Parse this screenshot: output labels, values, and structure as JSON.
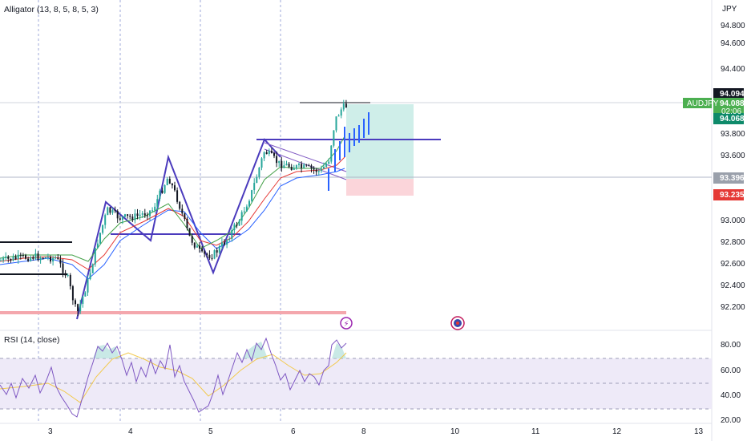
{
  "main_pane": {
    "indicator_label": "Alligator (13, 8, 5, 8, 5, 3)",
    "currency": "JPY",
    "price_ticks": [
      "94.800",
      "94.600",
      "94.400",
      "93.800",
      "93.600",
      "93.000",
      "92.800",
      "92.600",
      "92.400",
      "92.200"
    ],
    "symbol_badge": "AUDJPY",
    "price_high": "94.094",
    "price_last": "94.088",
    "countdown": "02:06",
    "price_bid": "94.068",
    "price_line": "93.396",
    "price_stop": "93.235"
  },
  "rsi_pane": {
    "label": "RSI (14, close)",
    "ticks": [
      "80.00",
      "60.00",
      "40.00",
      "20.00"
    ]
  },
  "time_axis": {
    "ticks": [
      "3",
      "4",
      "5",
      "6",
      "8",
      "10",
      "11",
      "12",
      "13"
    ]
  },
  "colors": {
    "bull": "#26a69a",
    "bear": "#131722",
    "drawing": "#4b3bbd",
    "target_zone": "#cfeee9",
    "stop_zone": "#fbd5da",
    "rsi_band": "#eeeaf8",
    "rsi_line": "#7e57c2",
    "rsi_ma": "#f2c94c",
    "badge_green": "#4caf50",
    "badge_red": "#e53935"
  }
}
